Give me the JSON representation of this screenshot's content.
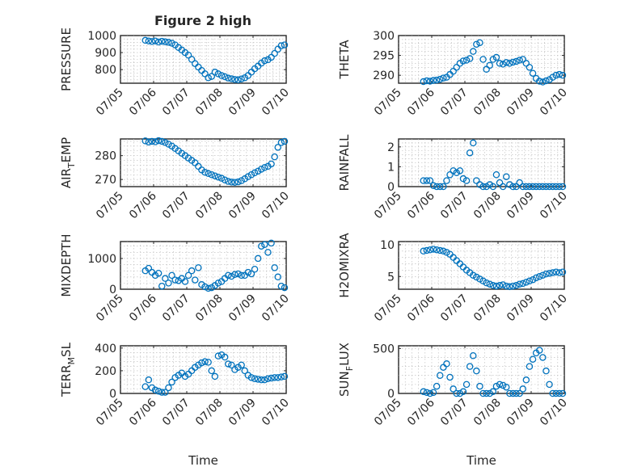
{
  "figure": {
    "title": "Figure 2 high"
  },
  "chart_data": [
    {
      "type": "scatter",
      "ylabel": "PRESSURE",
      "ylim": [
        720,
        1000
      ],
      "yticks": [
        800,
        900,
        1000
      ],
      "xlim": [
        0,
        5
      ],
      "xticks": [
        0,
        1,
        2,
        3,
        4,
        5
      ],
      "xtick_labels": [
        "07/05",
        "07/06",
        "07/07",
        "07/08",
        "07/09",
        "07/10"
      ],
      "grid": true,
      "xlabel": "",
      "x": [
        0.75,
        0.85,
        0.95,
        1.05,
        1.15,
        1.25,
        1.35,
        1.45,
        1.55,
        1.65,
        1.75,
        1.85,
        1.95,
        2.05,
        2.15,
        2.25,
        2.35,
        2.45,
        2.55,
        2.65,
        2.75,
        2.85,
        2.95,
        3.05,
        3.15,
        3.25,
        3.35,
        3.45,
        3.55,
        3.65,
        3.75,
        3.85,
        3.95,
        4.05,
        4.15,
        4.25,
        4.35,
        4.45,
        4.55,
        4.65,
        4.75,
        4.85,
        4.95
      ],
      "y": [
        972,
        968,
        965,
        968,
        962,
        966,
        963,
        960,
        955,
        945,
        930,
        915,
        900,
        885,
        860,
        835,
        815,
        795,
        775,
        752,
        760,
        785,
        775,
        765,
        758,
        750,
        746,
        742,
        740,
        745,
        752,
        765,
        785,
        805,
        820,
        838,
        852,
        858,
        872,
        895,
        920,
        940,
        945
      ]
    },
    {
      "type": "scatter",
      "ylabel": "THETA",
      "ylim": [
        288,
        300
      ],
      "yticks": [
        290,
        295,
        300
      ],
      "xlim": [
        0,
        5
      ],
      "xticks": [
        0,
        1,
        2,
        3,
        4,
        5
      ],
      "xtick_labels": [
        "07/05",
        "07/06",
        "07/07",
        "07/08",
        "07/09",
        "07/10"
      ],
      "grid": true,
      "xlabel": "",
      "x": [
        0.75,
        0.85,
        0.95,
        1.05,
        1.15,
        1.25,
        1.35,
        1.45,
        1.55,
        1.65,
        1.75,
        1.85,
        1.95,
        2.05,
        2.15,
        2.25,
        2.35,
        2.45,
        2.55,
        2.65,
        2.75,
        2.85,
        2.95,
        3.05,
        3.15,
        3.25,
        3.35,
        3.45,
        3.55,
        3.65,
        3.75,
        3.85,
        3.95,
        4.05,
        4.15,
        4.25,
        4.35,
        4.45,
        4.55,
        4.65,
        4.75,
        4.85,
        4.95
      ],
      "y": [
        288.4,
        288.6,
        288.5,
        288.7,
        288.8,
        289.0,
        289.3,
        289.5,
        290.2,
        291.0,
        292.0,
        293.0,
        293.6,
        293.8,
        294.2,
        296.0,
        297.8,
        298.2,
        294.0,
        291.5,
        292.5,
        294.0,
        294.5,
        293.0,
        292.8,
        293.2,
        293.0,
        293.3,
        293.5,
        293.8,
        294.0,
        293.0,
        292.0,
        290.5,
        289.2,
        288.5,
        288.3,
        288.6,
        288.9,
        289.5,
        290.0,
        290.2,
        290.0
      ]
    },
    {
      "type": "scatter",
      "ylabel": "AIR_TEMP",
      "ylim": [
        267,
        287
      ],
      "yticks": [
        270,
        280
      ],
      "xlim": [
        0,
        5
      ],
      "xticks": [
        0,
        1,
        2,
        3,
        4,
        5
      ],
      "xtick_labels": [
        "07/05",
        "07/06",
        "07/07",
        "07/08",
        "07/09",
        "07/10"
      ],
      "grid": true,
      "xlabel": "",
      "x": [
        0.75,
        0.85,
        0.95,
        1.05,
        1.15,
        1.25,
        1.35,
        1.45,
        1.55,
        1.65,
        1.75,
        1.85,
        1.95,
        2.05,
        2.15,
        2.25,
        2.35,
        2.45,
        2.55,
        2.65,
        2.75,
        2.85,
        2.95,
        3.05,
        3.15,
        3.25,
        3.35,
        3.45,
        3.55,
        3.65,
        3.75,
        3.85,
        3.95,
        4.05,
        4.15,
        4.25,
        4.35,
        4.45,
        4.55,
        4.65,
        4.75,
        4.85,
        4.95
      ],
      "y": [
        286.2,
        285.7,
        286.0,
        285.8,
        286.3,
        286.0,
        285.5,
        284.8,
        284.0,
        283.0,
        282.0,
        281.0,
        280.0,
        279.0,
        278.0,
        277.0,
        275.5,
        274.0,
        273.0,
        272.5,
        272.0,
        271.5,
        271.0,
        270.5,
        269.8,
        269.2,
        268.9,
        268.8,
        269.0,
        269.5,
        270.3,
        271.2,
        272.0,
        272.8,
        273.5,
        274.3,
        275.0,
        275.5,
        276.5,
        279.5,
        283.5,
        285.5,
        286.0
      ]
    },
    {
      "type": "scatter",
      "ylabel": "RAINFALL",
      "ylim": [
        0,
        2.4
      ],
      "yticks": [
        0,
        1,
        2
      ],
      "xlim": [
        0,
        5
      ],
      "xticks": [
        0,
        1,
        2,
        3,
        4,
        5
      ],
      "xtick_labels": [
        "07/05",
        "07/06",
        "07/07",
        "07/08",
        "07/09",
        "07/10"
      ],
      "grid": true,
      "xlabel": "",
      "x": [
        0.75,
        0.85,
        0.95,
        1.05,
        1.15,
        1.25,
        1.35,
        1.45,
        1.55,
        1.65,
        1.75,
        1.85,
        1.95,
        2.05,
        2.15,
        2.25,
        2.35,
        2.45,
        2.55,
        2.65,
        2.75,
        2.85,
        2.95,
        3.05,
        3.15,
        3.25,
        3.35,
        3.45,
        3.55,
        3.65,
        3.75,
        3.85,
        3.95,
        4.05,
        4.15,
        4.25,
        4.35,
        4.45,
        4.55,
        4.65,
        4.75,
        4.85,
        4.95
      ],
      "y": [
        0.3,
        0.3,
        0.3,
        0.05,
        0.0,
        0.0,
        0.0,
        0.3,
        0.6,
        0.8,
        0.7,
        0.8,
        0.4,
        0.3,
        1.7,
        2.2,
        0.3,
        0.1,
        0.0,
        0.0,
        0.1,
        0.0,
        0.6,
        0.2,
        0.0,
        0.5,
        0.1,
        0.0,
        0.0,
        0.2,
        0.0,
        0.0,
        0.0,
        0.0,
        0.0,
        0.0,
        0.0,
        0.0,
        0.0,
        0.0,
        0.0,
        0.0,
        0.0
      ]
    },
    {
      "type": "scatter",
      "ylabel": "MIXDEPTH",
      "ylim": [
        0,
        1550
      ],
      "yticks": [
        0,
        1000
      ],
      "xlim": [
        0,
        5
      ],
      "xticks": [
        0,
        1,
        2,
        3,
        4,
        5
      ],
      "xtick_labels": [
        "07/05",
        "07/06",
        "07/07",
        "07/08",
        "07/09",
        "07/10"
      ],
      "grid": true,
      "xlabel": "",
      "x": [
        0.75,
        0.85,
        0.95,
        1.05,
        1.15,
        1.25,
        1.35,
        1.45,
        1.55,
        1.65,
        1.75,
        1.85,
        1.95,
        2.05,
        2.15,
        2.25,
        2.35,
        2.45,
        2.55,
        2.65,
        2.75,
        2.85,
        2.95,
        3.05,
        3.15,
        3.25,
        3.35,
        3.45,
        3.55,
        3.65,
        3.75,
        3.85,
        3.95,
        4.05,
        4.15,
        4.25,
        4.35,
        4.45,
        4.55,
        4.65,
        4.75,
        4.85,
        4.95
      ],
      "y": [
        600,
        680,
        550,
        450,
        520,
        100,
        350,
        200,
        450,
        300,
        280,
        350,
        250,
        450,
        600,
        300,
        700,
        150,
        80,
        30,
        50,
        120,
        200,
        250,
        350,
        450,
        420,
        480,
        500,
        450,
        450,
        550,
        500,
        650,
        1000,
        1400,
        1450,
        1200,
        1500,
        700,
        400,
        100,
        50
      ]
    },
    {
      "type": "scatter",
      "ylabel": "H2OMIXRA",
      "ylim": [
        3,
        10.5
      ],
      "yticks": [
        5,
        10
      ],
      "xlim": [
        0,
        5
      ],
      "xticks": [
        0,
        1,
        2,
        3,
        4,
        5
      ],
      "xtick_labels": [
        "07/05",
        "07/06",
        "07/07",
        "07/08",
        "07/09",
        "07/10"
      ],
      "grid": true,
      "xlabel": "",
      "x": [
        0.75,
        0.85,
        0.95,
        1.05,
        1.15,
        1.25,
        1.35,
        1.45,
        1.55,
        1.65,
        1.75,
        1.85,
        1.95,
        2.05,
        2.15,
        2.25,
        2.35,
        2.45,
        2.55,
        2.65,
        2.75,
        2.85,
        2.95,
        3.05,
        3.15,
        3.25,
        3.35,
        3.45,
        3.55,
        3.65,
        3.75,
        3.85,
        3.95,
        4.05,
        4.15,
        4.25,
        4.35,
        4.45,
        4.55,
        4.65,
        4.75,
        4.85,
        4.95
      ],
      "y": [
        9.0,
        9.1,
        9.2,
        9.3,
        9.2,
        9.1,
        9.0,
        8.8,
        8.5,
        8.0,
        7.5,
        7.0,
        6.5,
        6.0,
        5.6,
        5.2,
        4.9,
        4.6,
        4.3,
        4.0,
        3.8,
        3.6,
        3.5,
        3.6,
        3.7,
        3.5,
        3.4,
        3.5,
        3.6,
        3.8,
        3.9,
        4.1,
        4.3,
        4.5,
        4.8,
        5.0,
        5.2,
        5.4,
        5.5,
        5.6,
        5.7,
        5.6,
        5.7
      ]
    },
    {
      "type": "scatter",
      "ylabel": "TERR_MSL",
      "ylim": [
        0,
        420
      ],
      "yticks": [
        0,
        200,
        400
      ],
      "xlim": [
        0,
        5
      ],
      "xticks": [
        0,
        1,
        2,
        3,
        4,
        5
      ],
      "xtick_labels": [
        "07/05",
        "07/06",
        "07/07",
        "07/08",
        "07/09",
        "07/10"
      ],
      "grid": true,
      "xlabel": "Time",
      "x": [
        0.75,
        0.85,
        0.95,
        1.05,
        1.15,
        1.25,
        1.35,
        1.45,
        1.55,
        1.65,
        1.75,
        1.85,
        1.95,
        2.05,
        2.15,
        2.25,
        2.35,
        2.45,
        2.55,
        2.65,
        2.75,
        2.85,
        2.95,
        3.05,
        3.15,
        3.25,
        3.35,
        3.45,
        3.55,
        3.65,
        3.75,
        3.85,
        3.95,
        4.05,
        4.15,
        4.25,
        4.35,
        4.45,
        4.55,
        4.65,
        4.75,
        4.85,
        4.95
      ],
      "y": [
        60,
        120,
        50,
        30,
        20,
        10,
        10,
        50,
        100,
        140,
        160,
        180,
        150,
        170,
        200,
        230,
        250,
        270,
        280,
        275,
        200,
        150,
        330,
        340,
        320,
        260,
        250,
        210,
        230,
        250,
        200,
        160,
        140,
        130,
        125,
        120,
        120,
        130,
        135,
        140,
        140,
        145,
        150
      ]
    },
    {
      "type": "scatter",
      "ylabel": "SUN_FLUX",
      "ylim": [
        0,
        530
      ],
      "yticks": [
        0,
        500
      ],
      "xlim": [
        0,
        5
      ],
      "xticks": [
        0,
        1,
        2,
        3,
        4,
        5
      ],
      "xtick_labels": [
        "07/05",
        "07/06",
        "07/07",
        "07/08",
        "07/09",
        "07/10"
      ],
      "grid": true,
      "xlabel": "Time",
      "x": [
        0.75,
        0.85,
        0.95,
        1.05,
        1.15,
        1.25,
        1.35,
        1.45,
        1.55,
        1.65,
        1.75,
        1.85,
        1.95,
        2.05,
        2.15,
        2.25,
        2.35,
        2.45,
        2.55,
        2.65,
        2.75,
        2.85,
        2.95,
        3.05,
        3.15,
        3.25,
        3.35,
        3.45,
        3.55,
        3.65,
        3.75,
        3.85,
        3.95,
        4.05,
        4.15,
        4.25,
        4.35,
        4.45,
        4.55,
        4.65,
        4.75,
        4.85,
        4.95
      ],
      "y": [
        20,
        10,
        0,
        10,
        80,
        200,
        290,
        330,
        180,
        50,
        0,
        0,
        20,
        100,
        300,
        420,
        250,
        80,
        0,
        0,
        0,
        20,
        80,
        100,
        90,
        70,
        0,
        0,
        0,
        0,
        50,
        150,
        300,
        380,
        450,
        480,
        400,
        250,
        100,
        0,
        0,
        0,
        0
      ]
    }
  ]
}
